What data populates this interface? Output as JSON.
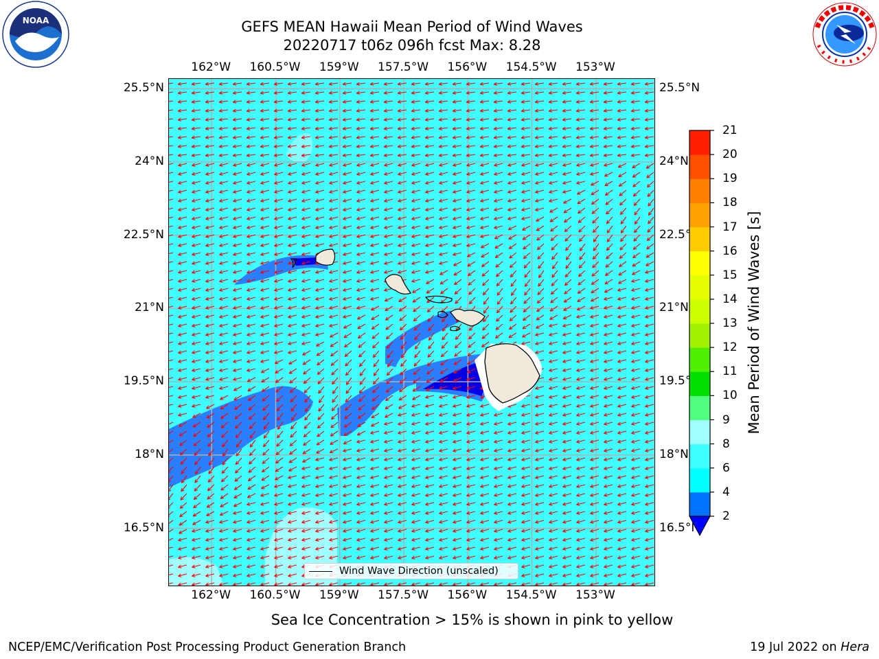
{
  "title_line1": "GEFS MEAN Hawaii Mean Period of Wind Waves",
  "title_line2": "20220717 t06z 096h fcst   Max: 8.28",
  "lon_ticks": [
    "162°W",
    "160.5°W",
    "159°W",
    "157.5°W",
    "156°W",
    "154.5°W",
    "153°W"
  ],
  "lat_ticks": [
    "25.5°N",
    "24°N",
    "22.5°N",
    "21°N",
    "19.5°N",
    "18°N",
    "16.5°N"
  ],
  "legend_label": "Wind Wave Direction (unscaled)",
  "colorbar": {
    "label": "Mean Period of Wind Waves [s]",
    "levels": [
      2,
      4,
      6,
      8,
      9,
      10,
      11,
      12,
      13,
      14,
      15,
      16,
      17,
      18,
      19,
      20,
      21
    ],
    "colors": [
      "#0073ff",
      "#00ffff",
      "#40ffff",
      "#a0ffff",
      "#50ff80",
      "#00e000",
      "#50ee00",
      "#a0f000",
      "#ccff00",
      "#e6ff00",
      "#ffff00",
      "#ffcc00",
      "#ffa000",
      "#ff8000",
      "#ff5000",
      "#ff2000"
    ],
    "under_color": "#0000ff"
  },
  "sea_ice_note": "Sea Ice Concentration > 15% is shown in pink to yellow",
  "footer_left": "NCEP/EMC/Verification Post Processing Product Generation Branch",
  "footer_right_date": "19 Jul 2022 on ",
  "footer_right_host": "Hera",
  "map_extent": {
    "lon_min": -163.0,
    "lon_max": -151.6,
    "lat_min": 15.3,
    "lat_max": 25.7
  },
  "colors": {
    "ocean_main": "#40ffff",
    "ocean_light": "#a0ffff",
    "wave_band": "#2a7fff",
    "wave_dark": "#0000e8",
    "land": "#efeadb",
    "arrow": "#ff0000",
    "grid": "#b0b0b0"
  },
  "logos": [
    "noaa-logo",
    "nws-logo"
  ]
}
